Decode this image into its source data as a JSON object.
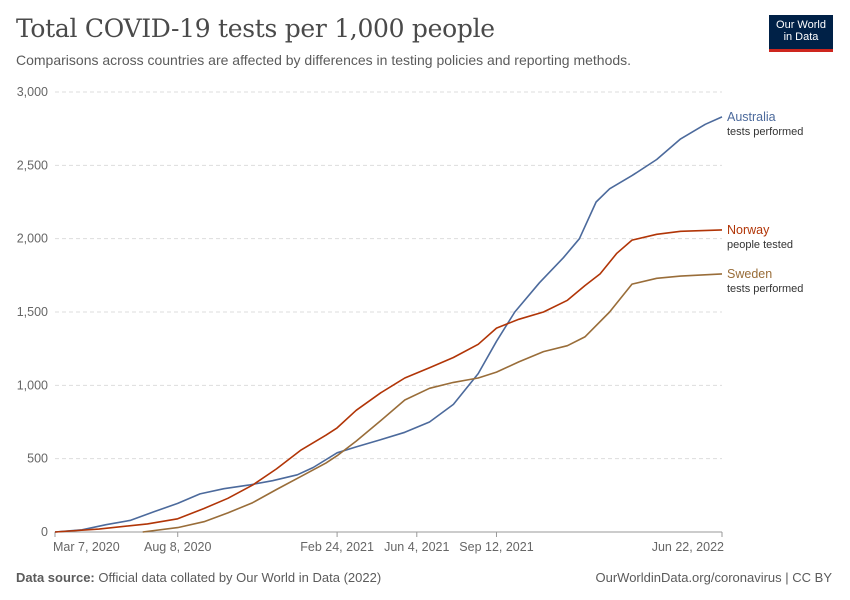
{
  "header": {
    "title": "Total COVID-19 tests per 1,000 people",
    "subtitle": "Comparisons across countries are affected by differences in testing policies and reporting methods.",
    "logo_line1": "Our World",
    "logo_line2": "in Data"
  },
  "footer": {
    "source_label": "Data source:",
    "source_text": "Official data collated by Our World in Data (2022)",
    "right_text": "OurWorldinData.org/coronavirus | CC BY"
  },
  "chart_data": {
    "type": "line",
    "title": "Total COVID-19 tests per 1,000 people",
    "ylim": [
      0,
      3000
    ],
    "yticks": [
      0,
      500,
      1000,
      1500,
      2000,
      2500,
      3000
    ],
    "ytick_labels": [
      "0",
      "500",
      "1,000",
      "1,500",
      "2,000",
      "2,500",
      "3,000"
    ],
    "xlim": [
      "2020-03-07",
      "2022-06-22"
    ],
    "xticks": [
      "2020-03-07",
      "2020-08-08",
      "2021-02-24",
      "2021-06-04",
      "2021-09-12",
      "2022-06-22"
    ],
    "xtick_labels": [
      "Mar 7, 2020",
      "Aug 8, 2020",
      "Feb 24, 2021",
      "Jun 4, 2021",
      "Sep 12, 2021",
      "Jun 22, 2022"
    ],
    "grid": true,
    "series": [
      {
        "name": "Australia",
        "sublabel": "tests performed",
        "color": "#4c6a9c",
        "points": [
          [
            "2020-03-07",
            0
          ],
          [
            "2020-04-10",
            15
          ],
          [
            "2020-05-10",
            50
          ],
          [
            "2020-06-10",
            80
          ],
          [
            "2020-07-10",
            140
          ],
          [
            "2020-08-08",
            195
          ],
          [
            "2020-09-05",
            260
          ],
          [
            "2020-10-05",
            295
          ],
          [
            "2020-11-05",
            320
          ],
          [
            "2020-12-05",
            350
          ],
          [
            "2021-01-05",
            390
          ],
          [
            "2021-01-25",
            440
          ],
          [
            "2021-02-24",
            540
          ],
          [
            "2021-03-20",
            580
          ],
          [
            "2021-04-20",
            630
          ],
          [
            "2021-05-20",
            680
          ],
          [
            "2021-06-20",
            750
          ],
          [
            "2021-07-20",
            870
          ],
          [
            "2021-08-20",
            1080
          ],
          [
            "2021-09-12",
            1300
          ],
          [
            "2021-10-05",
            1500
          ],
          [
            "2021-11-05",
            1700
          ],
          [
            "2021-12-05",
            1870
          ],
          [
            "2021-12-25",
            2000
          ],
          [
            "2022-01-15",
            2250
          ],
          [
            "2022-02-01",
            2340
          ],
          [
            "2022-03-01",
            2430
          ],
          [
            "2022-04-01",
            2540
          ],
          [
            "2022-05-01",
            2680
          ],
          [
            "2022-06-01",
            2780
          ],
          [
            "2022-06-22",
            2830
          ]
        ]
      },
      {
        "name": "Norway",
        "sublabel": "people tested",
        "color": "#b13507",
        "points": [
          [
            "2020-03-07",
            0
          ],
          [
            "2020-05-01",
            20
          ],
          [
            "2020-07-01",
            55
          ],
          [
            "2020-08-08",
            90
          ],
          [
            "2020-09-10",
            160
          ],
          [
            "2020-10-10",
            230
          ],
          [
            "2020-11-10",
            320
          ],
          [
            "2020-12-10",
            430
          ],
          [
            "2021-01-10",
            560
          ],
          [
            "2021-02-10",
            660
          ],
          [
            "2021-02-24",
            710
          ],
          [
            "2021-03-20",
            830
          ],
          [
            "2021-04-20",
            950
          ],
          [
            "2021-05-20",
            1050
          ],
          [
            "2021-06-20",
            1120
          ],
          [
            "2021-07-20",
            1190
          ],
          [
            "2021-08-20",
            1280
          ],
          [
            "2021-09-12",
            1390
          ],
          [
            "2021-10-10",
            1450
          ],
          [
            "2021-11-10",
            1500
          ],
          [
            "2021-12-10",
            1580
          ],
          [
            "2022-01-01",
            1680
          ],
          [
            "2022-01-20",
            1760
          ],
          [
            "2022-02-10",
            1900
          ],
          [
            "2022-03-01",
            1990
          ],
          [
            "2022-04-01",
            2030
          ],
          [
            "2022-05-01",
            2050
          ],
          [
            "2022-06-22",
            2060
          ]
        ]
      },
      {
        "name": "Sweden",
        "sublabel": "tests performed",
        "color": "#996d39",
        "points": [
          [
            "2020-06-25",
            0
          ],
          [
            "2020-08-08",
            30
          ],
          [
            "2020-09-10",
            70
          ],
          [
            "2020-10-10",
            130
          ],
          [
            "2020-11-10",
            200
          ],
          [
            "2020-12-10",
            290
          ],
          [
            "2021-01-10",
            380
          ],
          [
            "2021-02-10",
            470
          ],
          [
            "2021-02-24",
            520
          ],
          [
            "2021-03-20",
            620
          ],
          [
            "2021-04-20",
            760
          ],
          [
            "2021-05-20",
            900
          ],
          [
            "2021-06-20",
            980
          ],
          [
            "2021-07-20",
            1020
          ],
          [
            "2021-08-20",
            1050
          ],
          [
            "2021-09-12",
            1090
          ],
          [
            "2021-10-10",
            1160
          ],
          [
            "2021-11-10",
            1230
          ],
          [
            "2021-12-10",
            1270
          ],
          [
            "2022-01-01",
            1330
          ],
          [
            "2022-02-01",
            1500
          ],
          [
            "2022-03-01",
            1690
          ],
          [
            "2022-04-01",
            1730
          ],
          [
            "2022-05-01",
            1745
          ],
          [
            "2022-06-22",
            1760
          ]
        ]
      }
    ]
  }
}
